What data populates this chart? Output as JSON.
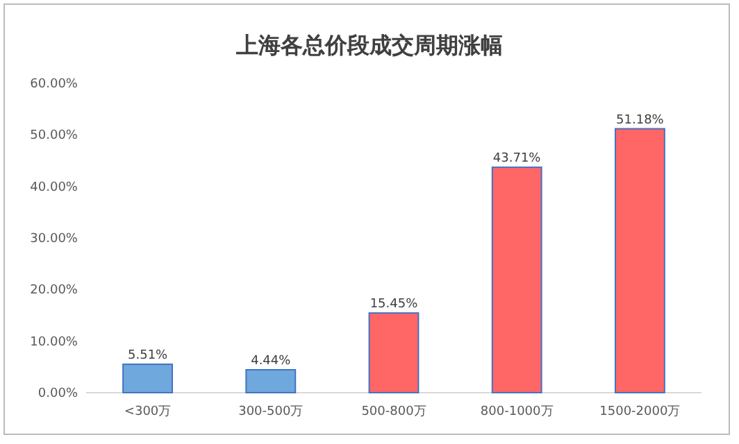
{
  "chart_data": {
    "type": "bar",
    "title": "上海各总价段成交周期涨幅",
    "categories": [
      "<300万",
      "300-500万",
      "500-800万",
      "800-1000万",
      "1500-2000万"
    ],
    "values": [
      5.51,
      4.44,
      15.45,
      43.71,
      51.18
    ],
    "value_labels": [
      "5.51%",
      "4.44%",
      "15.45%",
      "43.71%",
      "51.18%"
    ],
    "colors": [
      "#6fa8dc",
      "#6fa8dc",
      "#ff6666",
      "#ff6666",
      "#ff6666"
    ],
    "ylim": [
      0,
      60
    ],
    "yticks": [
      {
        "value": 0,
        "label": "0.00%"
      },
      {
        "value": 10,
        "label": "10.00%"
      },
      {
        "value": 20,
        "label": "20.00%"
      },
      {
        "value": 30,
        "label": "30.00%"
      },
      {
        "value": 40,
        "label": "40.00%"
      },
      {
        "value": 50,
        "label": "50.00%"
      },
      {
        "value": 60,
        "label": "60.00%"
      }
    ],
    "grid": false
  }
}
